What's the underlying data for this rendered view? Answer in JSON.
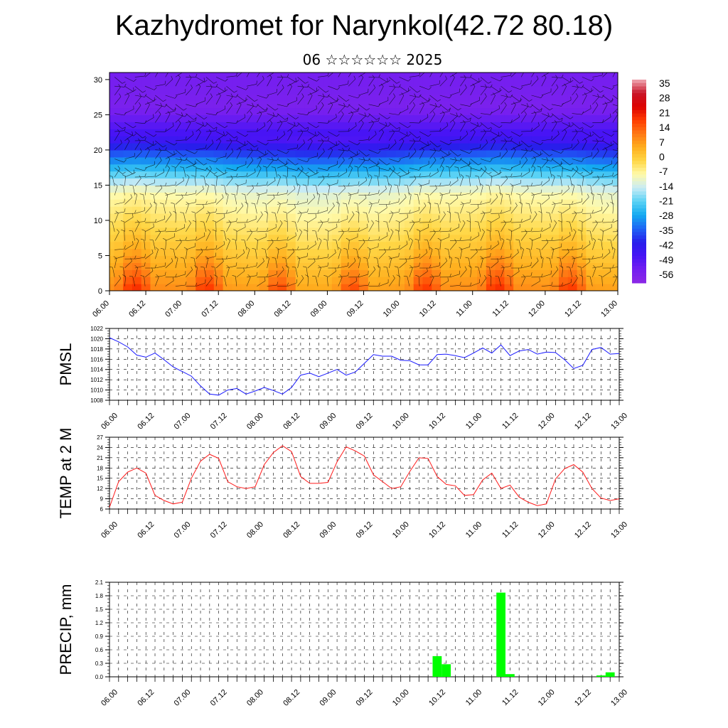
{
  "title": "Kazhydromet for Narynkol(42.72 80.18)",
  "subtitle": "06 ☆☆☆☆☆☆ 2025",
  "colors": {
    "pmsl_line": "#1a1aff",
    "temp_line": "#ff1a1a",
    "precip_bar": "#00ff00"
  },
  "chart_data": [
    {
      "type": "heatmap",
      "name": "cross-section",
      "x_tick_labels": [
        "06.00",
        "06.12",
        "07.00",
        "07.12",
        "08.00",
        "08.12",
        "09.00",
        "09.12",
        "10.00",
        "10.12",
        "11.00",
        "11.12",
        "12.00",
        "12.12",
        "13.00"
      ],
      "y_tick_labels": [
        "0",
        "5",
        "10",
        "15",
        "20",
        "25",
        "30"
      ],
      "ylim": [
        0,
        31
      ],
      "colorbar_labels": [
        "35",
        "28",
        "21",
        "14",
        "7",
        "0",
        "-7",
        "-14",
        "-21",
        "-28",
        "-35",
        "-42",
        "-49",
        "-56"
      ],
      "colorbar_range": [
        -63,
        42
      ],
      "overlay": "wind barbs"
    },
    {
      "type": "line",
      "ylabel": "PMSL",
      "ylim": [
        1008,
        1022
      ],
      "y_ticks": [
        "1008",
        "1010",
        "1012",
        "1014",
        "1016",
        "1018",
        "1020",
        "1022"
      ],
      "x_tick_labels": [
        "06.00",
        "06.12",
        "07.00",
        "07.12",
        "08.00",
        "08.12",
        "09.00",
        "09.12",
        "10.00",
        "10.12",
        "11.00",
        "11.12",
        "12.00",
        "12.12",
        "13.00"
      ],
      "values": [
        1020.2,
        1019.4,
        1018.4,
        1016.8,
        1016.4,
        1017.2,
        1015.9,
        1014.5,
        1013.6,
        1012.7,
        1010.8,
        1009.2,
        1009.0,
        1010.0,
        1010.3,
        1009.2,
        1009.8,
        1010.5,
        1009.9,
        1009.2,
        1010.5,
        1012.9,
        1013.3,
        1012.6,
        1013.3,
        1014.0,
        1012.9,
        1013.5,
        1015.2,
        1016.9,
        1016.6,
        1016.6,
        1015.8,
        1015.7,
        1014.9,
        1014.9,
        1016.9,
        1017.0,
        1016.7,
        1016.3,
        1017.2,
        1018.2,
        1017.2,
        1018.8,
        1016.7,
        1017.6,
        1017.9,
        1017.0,
        1017.4,
        1017.3,
        1015.9,
        1014.2,
        1014.8,
        1017.9,
        1018.3,
        1017.0,
        1017.1
      ]
    },
    {
      "type": "line",
      "ylabel": "TEMP at 2 M",
      "ylim": [
        6,
        27
      ],
      "y_ticks": [
        "6",
        "9",
        "12",
        "15",
        "18",
        "21",
        "24",
        "27"
      ],
      "x_tick_labels": [
        "06.00",
        "06.12",
        "07.00",
        "07.12",
        "08.00",
        "08.12",
        "09.00",
        "09.12",
        "10.00",
        "10.12",
        "11.00",
        "11.12",
        "12.00",
        "12.12",
        "13.00"
      ],
      "values": [
        6.5,
        14.0,
        16.8,
        18.0,
        16.5,
        10.0,
        8.5,
        7.5,
        8.0,
        15.0,
        20.0,
        22.0,
        20.8,
        14.0,
        12.5,
        12.0,
        12.5,
        19.0,
        22.5,
        24.5,
        22.8,
        15.5,
        13.5,
        13.5,
        13.8,
        19.8,
        24.2,
        23.0,
        21.5,
        16.0,
        14.0,
        12.0,
        12.5,
        17.0,
        21.0,
        20.8,
        15.5,
        13.2,
        12.8,
        10.0,
        10.2,
        14.5,
        16.5,
        12.0,
        13.0,
        9.5,
        8.0,
        7.0,
        7.5,
        14.8,
        17.8,
        19.0,
        16.8,
        12.0,
        9.2,
        8.5,
        9.0
      ]
    },
    {
      "type": "bar",
      "ylabel": "PRECIP, mm",
      "ylim": [
        0,
        2.1
      ],
      "y_ticks": [
        "0.0",
        "0.3",
        "0.6",
        "0.9",
        "1.2",
        "1.5",
        "1.8",
        "2.1"
      ],
      "x_tick_labels": [
        "06.00",
        "06.12",
        "07.00",
        "07.12",
        "08.00",
        "08.12",
        "09.00",
        "09.12",
        "10.00",
        "10.12",
        "11.00",
        "11.12",
        "12.00",
        "12.12",
        "13.00"
      ],
      "bars": [
        {
          "step": 36,
          "value": 0.46
        },
        {
          "step": 37,
          "value": 0.28
        },
        {
          "step": 43,
          "value": 1.87
        },
        {
          "step": 44,
          "value": 0.06
        },
        {
          "step": 54,
          "value": 0.03
        },
        {
          "step": 55,
          "value": 0.1
        }
      ]
    }
  ]
}
